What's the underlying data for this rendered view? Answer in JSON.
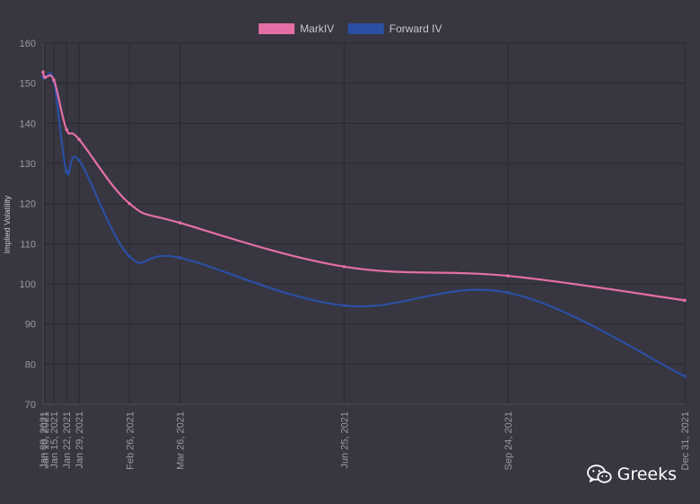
{
  "chart_data": {
    "type": "line",
    "ylabel": "Implied Volatility",
    "ylim": [
      70,
      160
    ],
    "yticks": [
      70,
      80,
      90,
      100,
      110,
      120,
      130,
      140,
      150,
      160
    ],
    "x": [
      "2021-01-09",
      "2021-01-10",
      "2021-01-15",
      "2021-01-22",
      "2021-01-29",
      "2021-02-26",
      "2021-03-26",
      "2021-06-25",
      "2021-09-24",
      "2021-12-31"
    ],
    "xtick_labels": [
      "Jan 09, 2021",
      "Jan 10, 2021",
      "Jan 15, 2021",
      "Jan 22, 2021",
      "Jan 29, 2021",
      "Feb 26, 2021",
      "Mar 26, 2021",
      "Jun 25, 2021",
      "Sep 24, 2021",
      "Dec 31, 2021"
    ],
    "series": [
      {
        "name": "MarkIV",
        "color": "#e46fa6",
        "values": [
          152.8,
          151.5,
          150.8,
          138.5,
          136.0,
          120.0,
          115.2,
          104.3,
          102.0,
          95.9
        ]
      },
      {
        "name": "Forward IV",
        "color": "#2b4fa2",
        "values": [
          151.5,
          151.3,
          150.5,
          128.0,
          130.8,
          106.8,
          106.5,
          94.6,
          97.8,
          77.0
        ]
      }
    ],
    "grid": true,
    "legend": "top-center"
  },
  "watermark": {
    "text": "Greeks",
    "icon": "wechat-icon"
  }
}
